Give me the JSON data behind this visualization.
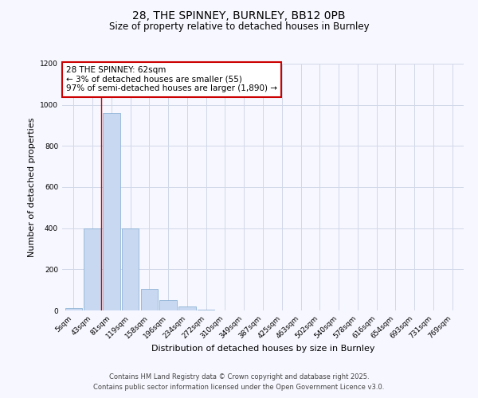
{
  "title": "28, THE SPINNEY, BURNLEY, BB12 0PB",
  "subtitle": "Size of property relative to detached houses in Burnley",
  "xlabel": "Distribution of detached houses by size in Burnley",
  "ylabel": "Number of detached properties",
  "bar_labels": [
    "5sqm",
    "43sqm",
    "81sqm",
    "119sqm",
    "158sqm",
    "196sqm",
    "234sqm",
    "272sqm",
    "310sqm",
    "349sqm",
    "387sqm",
    "425sqm",
    "463sqm",
    "502sqm",
    "540sqm",
    "578sqm",
    "616sqm",
    "654sqm",
    "693sqm",
    "731sqm",
    "769sqm"
  ],
  "bar_values": [
    10,
    400,
    960,
    400,
    105,
    50,
    20,
    5,
    0,
    0,
    0,
    0,
    0,
    0,
    0,
    0,
    0,
    0,
    0,
    0,
    0
  ],
  "bar_color": "#c8d8f0",
  "bar_edge_color": "#7faad0",
  "ylim": [
    0,
    1200
  ],
  "yticks": [
    0,
    200,
    400,
    600,
    800,
    1000,
    1200
  ],
  "vline_x": 1.47,
  "vline_color": "#cc0000",
  "annotation_box_title": "28 THE SPINNEY: 62sqm",
  "annotation_line1": "← 3% of detached houses are smaller (55)",
  "annotation_line2": "97% of semi-detached houses are larger (1,890) →",
  "annotation_box_color": "#cc0000",
  "footer1": "Contains HM Land Registry data © Crown copyright and database right 2025.",
  "footer2": "Contains public sector information licensed under the Open Government Licence v3.0.",
  "background_color": "#f7f7ff",
  "grid_color": "#d0d8e8"
}
